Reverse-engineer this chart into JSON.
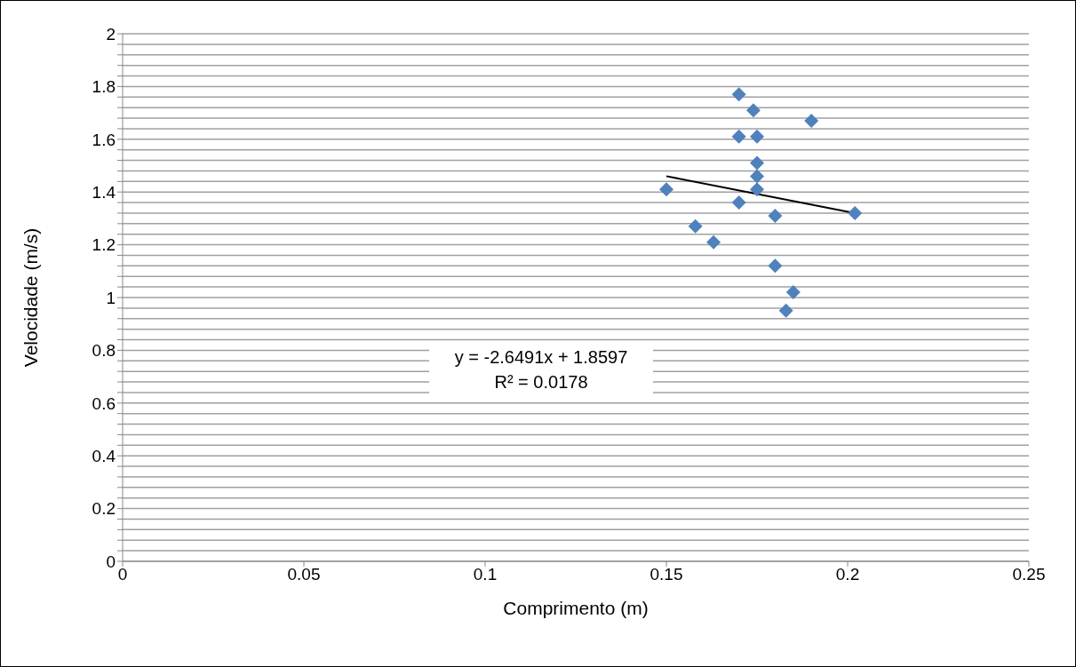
{
  "chart_data": {
    "type": "scatter",
    "xlabel": "Comprimento (m)",
    "ylabel": "Velocidade (m/s)",
    "xlim": [
      0,
      0.25
    ],
    "xticks": [
      0,
      0.05,
      0.1,
      0.15,
      0.2,
      0.25
    ],
    "ylim": [
      0,
      2
    ],
    "yticks": [
      0,
      {
        "value": 0.04,
        "label": null
      },
      {
        "value": 0.08,
        "label": null
      },
      {
        "value": 0.12,
        "label": null
      },
      {
        "value": 0.16,
        "label": null
      },
      0.2,
      {
        "value": 0.24,
        "label": null
      },
      {
        "value": 0.28,
        "label": null
      },
      {
        "value": 0.32,
        "label": null
      },
      {
        "value": 0.36,
        "label": null
      },
      0.4,
      {
        "value": 0.44,
        "label": null
      },
      {
        "value": 0.48,
        "label": null
      },
      {
        "value": 0.52,
        "label": null
      },
      {
        "value": 0.56,
        "label": null
      },
      0.6,
      {
        "value": 0.64,
        "label": null
      },
      {
        "value": 0.68,
        "label": null
      },
      {
        "value": 0.72,
        "label": null
      },
      {
        "value": 0.76,
        "label": null
      },
      0.8,
      {
        "value": 0.84,
        "label": null
      },
      {
        "value": 0.88,
        "label": null
      },
      {
        "value": 0.92,
        "label": null
      },
      {
        "value": 0.96,
        "label": null
      },
      1,
      {
        "value": 1.04,
        "label": null
      },
      {
        "value": 1.08,
        "label": null
      },
      {
        "value": 1.12,
        "label": null
      },
      {
        "value": 1.16,
        "label": null
      },
      1.2,
      {
        "value": 1.24,
        "label": null
      },
      {
        "value": 1.28,
        "label": null
      },
      {
        "value": 1.32,
        "label": null
      },
      {
        "value": 1.36,
        "label": null
      },
      1.4,
      {
        "value": 1.44,
        "label": null
      },
      {
        "value": 1.48,
        "label": null
      },
      {
        "value": 1.52,
        "label": null
      },
      {
        "value": 1.56,
        "label": null
      },
      1.6,
      {
        "value": 1.64,
        "label": null
      },
      {
        "value": 1.68,
        "label": null
      },
      {
        "value": 1.72,
        "label": null
      },
      {
        "value": 1.76,
        "label": null
      },
      1.8,
      {
        "value": 1.84,
        "label": null
      },
      {
        "value": 1.88,
        "label": null
      },
      {
        "value": 1.92,
        "label": null
      },
      {
        "value": 1.96,
        "label": null
      },
      2
    ],
    "grid": "y",
    "marker": "diamond",
    "series": [
      {
        "color": "#4f81bd",
        "x": [
          0.17,
          0.174,
          0.19,
          0.17,
          0.175,
          0.175,
          0.175,
          0.175,
          0.15,
          0.17,
          0.18,
          0.202,
          0.158,
          0.163,
          0.18,
          0.185,
          0.183
        ],
        "values": [
          1.77,
          1.71,
          1.67,
          1.61,
          1.61,
          1.51,
          1.46,
          1.41,
          1.41,
          1.36,
          1.31,
          1.32,
          1.27,
          1.21,
          1.12,
          1.02,
          0.95
        ]
      },
      {
        "type": "line",
        "marker": "none",
        "color": "#000000",
        "x": [
          0.15,
          0.202
        ],
        "values": [
          1.46,
          1.32
        ]
      }
    ],
    "annotations": [
      "y = -2.6491x + 1.8597",
      "R² = 0.0178"
    ]
  }
}
